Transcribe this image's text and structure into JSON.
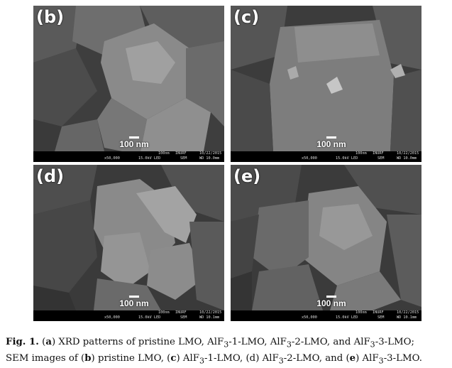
{
  "panels": [
    {
      "label": "(b)",
      "scale": "100 nm",
      "mag": "x50,000",
      "kv": "15.0kV LED",
      "sem": "SEM",
      "wd": "WD 10.0mm",
      "unit": "100nm",
      "inst": "INURF",
      "date": "10/22/2015"
    },
    {
      "label": "(c)",
      "scale": "100 nm",
      "mag": "x50,000",
      "kv": "15.0kV LED",
      "sem": "SEM",
      "wd": "WD 10.0mm",
      "unit": "100nm",
      "inst": "INURF",
      "date": "10/22/2015"
    },
    {
      "label": "(d)",
      "scale": "100 nm",
      "mag": "x50,000",
      "kv": "15.0kV LED",
      "sem": "SEM",
      "wd": "WD 10.1mm",
      "unit": "100nm",
      "inst": "INURF",
      "date": "10/22/2015"
    },
    {
      "label": "(e)",
      "scale": "100 nm",
      "mag": "x50,000",
      "kv": "15.0kV LED",
      "sem": "SEM",
      "wd": "WD 10.1mm",
      "unit": "100nm",
      "inst": "INURF",
      "date": "10/22/2015"
    }
  ],
  "caption": {
    "fig": "Fig. 1.",
    "sa": "(",
    "a": "a",
    "ta": ") XRD patterns of pristine LMO, AlF",
    "s1": "3",
    "t1": "-1-LMO, AlF",
    "s2": "3",
    "t2": "-2-LMO, and AlF",
    "s3": "3",
    "t3": "-3-LMO;",
    "l2a": "SEM images of (",
    "b": "b",
    "l2b": ") pristine LMO, (",
    "c": "c",
    "l2c": ") AlF",
    "s4": "3",
    "l2d": "-1-LMO, (d) AlF",
    "s5": "3",
    "l2e": "-2-LMO, and (",
    "e": "e",
    "l2f": ") AlF",
    "s6": "3",
    "l2g": "-3-LMO."
  }
}
